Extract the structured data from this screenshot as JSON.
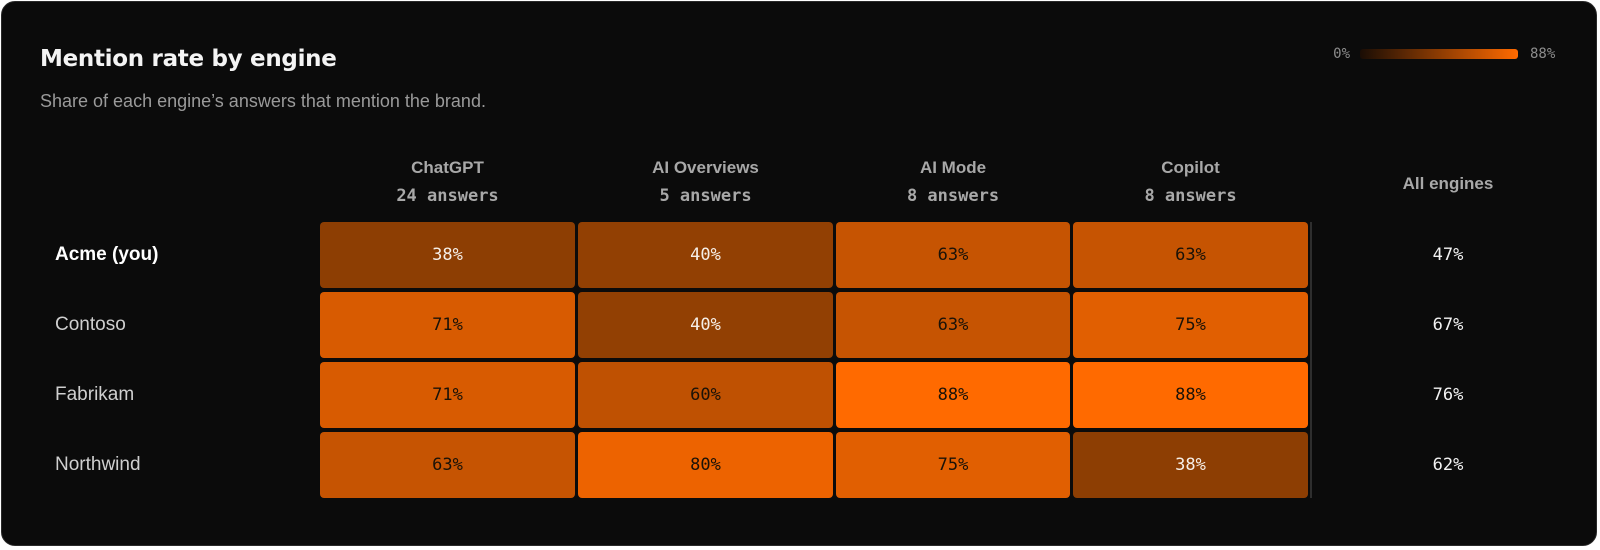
{
  "header": {
    "title": "Mention rate by engine",
    "subtitle": "Share of each engine’s answers that mention the brand."
  },
  "legend": {
    "min_label": "0%",
    "max_label": "88%",
    "colors": [
      "#1a0d05",
      "#ff6a00"
    ]
  },
  "colors": {
    "background": "#0b0b0b",
    "accent": "#ff6a00"
  },
  "chart_data": {
    "type": "heatmap",
    "title": "Mention rate by engine",
    "subtitle": "Share of each engine’s answers that mention the brand.",
    "columns": [
      {
        "name": "ChatGPT",
        "answers": "24 answers"
      },
      {
        "name": "AI Overviews",
        "answers": "5 answers"
      },
      {
        "name": "AI Mode",
        "answers": "8 answers"
      },
      {
        "name": "Copilot",
        "answers": "8 answers"
      }
    ],
    "total_column": "All engines",
    "rows": [
      {
        "label": "Acme (you)",
        "highlight": true,
        "values": [
          38,
          40,
          63,
          63
        ],
        "total": 47
      },
      {
        "label": "Contoso",
        "highlight": false,
        "values": [
          71,
          40,
          63,
          75
        ],
        "total": 67
      },
      {
        "label": "Fabrikam",
        "highlight": false,
        "values": [
          71,
          60,
          88,
          88
        ],
        "total": 76
      },
      {
        "label": "Northwind",
        "highlight": false,
        "values": [
          63,
          80,
          75,
          38
        ],
        "total": 62
      }
    ],
    "value_suffix": "%",
    "scale_max": 88
  }
}
